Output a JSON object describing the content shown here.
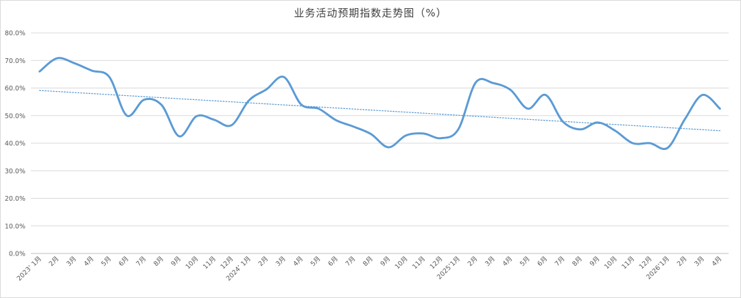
{
  "chart_data": {
    "type": "line",
    "title": "业务活动预期指数走势图（%）",
    "xlabel": "",
    "ylabel": "",
    "ylim": [
      0,
      80
    ],
    "yticks": [
      "0.0%",
      "10.0%",
      "20.0%",
      "30.0%",
      "40.0%",
      "50.0%",
      "60.0%",
      "70.0%",
      "80.0%"
    ],
    "grid": true,
    "categories": [
      "2023’ 1月",
      "2月",
      "3月",
      "4月",
      "5月",
      "6月",
      "7月",
      "8月",
      "9月",
      "10月",
      "11月",
      "12月",
      "2024’ 1月",
      "2月",
      "3月",
      "4月",
      "5月",
      "6月",
      "7月",
      "8月",
      "9月",
      "10月",
      "11月",
      "12月",
      "2025’1月",
      "2月",
      "3月",
      "4月",
      "5月",
      "6月",
      "7月",
      "8月",
      "9月",
      "10月",
      "11月",
      "12月",
      "2026’1月",
      "2月",
      "3月",
      "4月"
    ],
    "series": [
      {
        "values": [
          66,
          70.8,
          69,
          66.3,
          64,
          50,
          55.8,
          53.8,
          42.5,
          49.8,
          48.5,
          46.5,
          55.5,
          59.5,
          64,
          54,
          52.5,
          48.3,
          46,
          43.3,
          38.5,
          42.8,
          43.5,
          41.8,
          45,
          62,
          61.8,
          59.3,
          52.5,
          57.5,
          47.8,
          45,
          47.5,
          44.5,
          40,
          40,
          38.3,
          48.8,
          57.5,
          52.5
        ],
        "color": "#5b9bd5"
      }
    ],
    "trendline": {
      "type": "linear",
      "style": "dotted",
      "color": "#5b9bd5"
    }
  }
}
